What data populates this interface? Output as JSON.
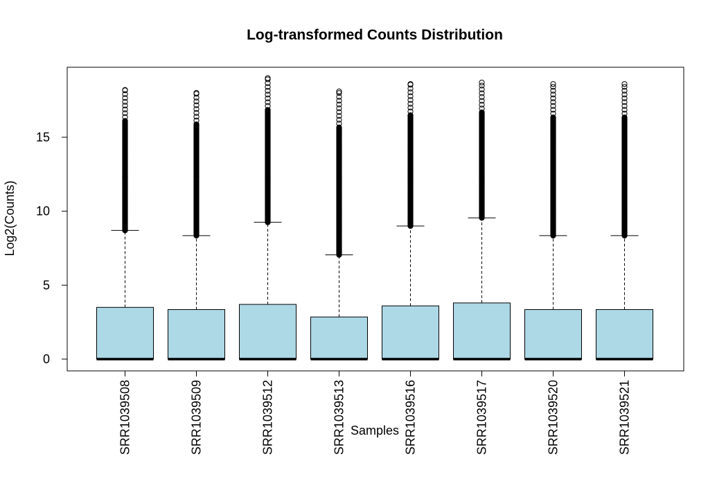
{
  "chart_data": {
    "type": "boxplot",
    "title": "Log-transformed Counts Distribution",
    "xlabel": "Samples",
    "ylabel": "Log2(Counts)",
    "ylim": [
      -0.75,
      19.8
    ],
    "yticks": [
      0,
      5,
      10,
      15
    ],
    "grid": false,
    "legend": "none",
    "colors": {
      "box_fill": "#add8e6",
      "stroke": "#000000"
    },
    "categories": [
      "SRR1039508",
      "SRR1039509",
      "SRR1039512",
      "SRR1039513",
      "SRR1039516",
      "SRR1039517",
      "SRR1039520",
      "SRR1039521"
    ],
    "boxes": [
      {
        "sample": "SRR1039508",
        "min": 0,
        "q1": 0,
        "median": 0,
        "q3": 3.5,
        "whisker_high": 8.7,
        "outliers_low": 8.7,
        "outliers_high": 18.2
      },
      {
        "sample": "SRR1039509",
        "min": 0,
        "q1": 0,
        "median": 0,
        "q3": 3.35,
        "whisker_high": 8.35,
        "outliers_low": 8.35,
        "outliers_high": 18.0
      },
      {
        "sample": "SRR1039512",
        "min": 0,
        "q1": 0,
        "median": 0,
        "q3": 3.7,
        "whisker_high": 9.25,
        "outliers_low": 9.25,
        "outliers_high": 19.0
      },
      {
        "sample": "SRR1039513",
        "min": 0,
        "q1": 0,
        "median": 0,
        "q3": 2.85,
        "whisker_high": 7.05,
        "outliers_low": 7.05,
        "outliers_high": 18.1
      },
      {
        "sample": "SRR1039516",
        "min": 0,
        "q1": 0,
        "median": 0,
        "q3": 3.6,
        "whisker_high": 9.0,
        "outliers_low": 9.0,
        "outliers_high": 18.6
      },
      {
        "sample": "SRR1039517",
        "min": 0,
        "q1": 0,
        "median": 0,
        "q3": 3.8,
        "whisker_high": 9.55,
        "outliers_low": 9.55,
        "outliers_high": 18.7
      },
      {
        "sample": "SRR1039520",
        "min": 0,
        "q1": 0,
        "median": 0,
        "q3": 3.35,
        "whisker_high": 8.35,
        "outliers_low": 8.35,
        "outliers_high": 18.6
      },
      {
        "sample": "SRR1039521",
        "min": 0,
        "q1": 0,
        "median": 0,
        "q3": 3.35,
        "whisker_high": 8.35,
        "outliers_low": 8.35,
        "outliers_high": 18.6
      }
    ]
  }
}
